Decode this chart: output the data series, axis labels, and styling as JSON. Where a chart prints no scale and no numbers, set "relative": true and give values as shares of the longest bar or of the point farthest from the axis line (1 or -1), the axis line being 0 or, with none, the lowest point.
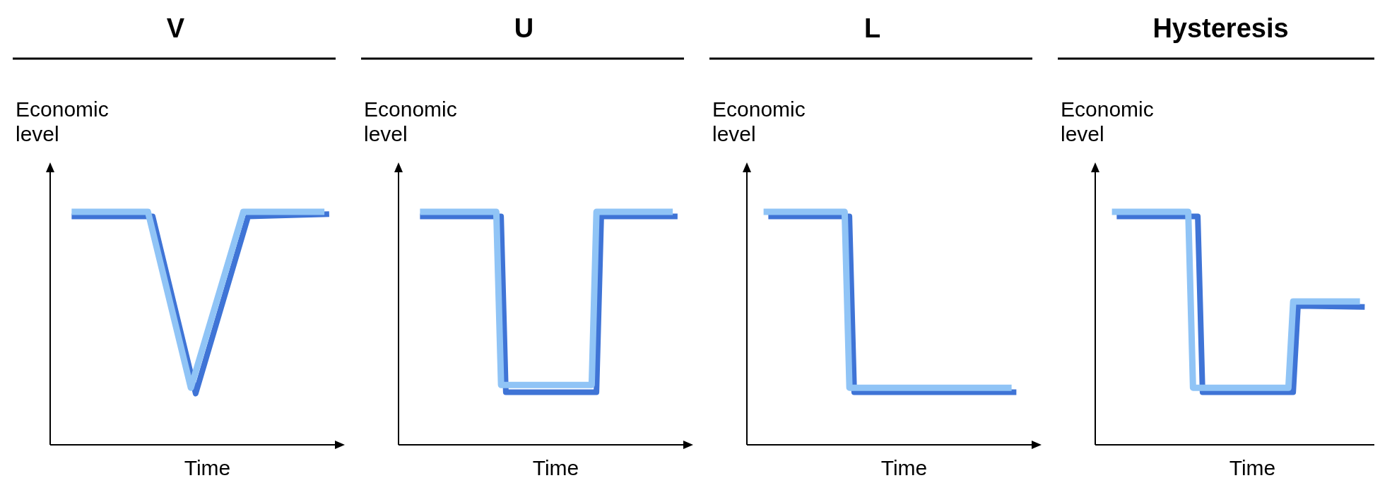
{
  "chart_data": [
    {
      "type": "line",
      "title": "V",
      "ylabel": "Economic level",
      "xlabel": "Time",
      "relative": true,
      "categories": [
        null,
        null,
        null,
        null,
        null,
        null,
        null,
        null,
        null,
        null,
        null,
        null,
        null,
        null,
        null,
        null,
        null,
        null,
        null,
        null,
        null,
        null,
        null,
        null,
        null,
        null,
        null,
        null,
        null,
        null,
        null,
        null,
        null,
        null,
        null,
        null,
        null,
        null,
        null,
        null,
        null,
        null,
        null,
        null,
        null,
        null,
        null,
        null,
        null,
        null,
        null,
        null,
        null,
        null,
        null,
        null,
        null,
        null,
        null,
        null
      ],
      "series": [
        {
          "color": "#3f74d6",
          "values": [
            null,
            null,
            null,
            null,
            0.98,
            null,
            null,
            null,
            null,
            null,
            null,
            null,
            null,
            null,
            null,
            null,
            null,
            null,
            null,
            null,
            null,
            0.98,
            null,
            null,
            null,
            null,
            null,
            null,
            null,
            null,
            0.22,
            null,
            null,
            null,
            null,
            null,
            null,
            null,
            null,
            null,
            null,
            0.98,
            null,
            null,
            null,
            null,
            null,
            null,
            null,
            null,
            null,
            null,
            null,
            null,
            null,
            null,
            null,
            null,
            0.99,
            null
          ]
        },
        {
          "color": "#90c4f6",
          "values": [
            null,
            null,
            null,
            null,
            1,
            null,
            null,
            null,
            null,
            null,
            null,
            null,
            null,
            null,
            null,
            null,
            null,
            null,
            null,
            null,
            1,
            null,
            null,
            null,
            null,
            null,
            null,
            null,
            null,
            0.245,
            null,
            null,
            null,
            null,
            null,
            null,
            null,
            null,
            null,
            null,
            1,
            null,
            null,
            null,
            null,
            null,
            null,
            null,
            null,
            null,
            null,
            null,
            null,
            null,
            null,
            null,
            null,
            1,
            null,
            null
          ]
        }
      ]
    },
    {
      "type": "line",
      "title": "U",
      "ylabel": "Economic level",
      "xlabel": "Time",
      "relative": true,
      "categories": [
        null,
        null,
        null,
        null,
        null,
        null,
        null,
        null,
        null,
        null,
        null,
        null,
        null,
        null,
        null,
        null,
        null,
        null,
        null,
        null,
        null,
        null,
        null,
        null,
        null,
        null,
        null,
        null,
        null,
        null,
        null,
        null,
        null,
        null,
        null,
        null,
        null,
        null,
        null,
        null,
        null,
        null,
        null,
        null,
        null,
        null,
        null,
        null,
        null,
        null,
        null,
        null,
        null,
        null,
        null,
        null,
        null,
        null,
        null,
        null
      ],
      "series": [
        {
          "color": "#3f74d6",
          "values": [
            null,
            null,
            null,
            null,
            0.98,
            null,
            null,
            null,
            null,
            null,
            null,
            null,
            null,
            null,
            null,
            null,
            null,
            null,
            null,
            null,
            null,
            0.98,
            0.226,
            null,
            null,
            null,
            null,
            null,
            null,
            null,
            null,
            null,
            null,
            null,
            null,
            null,
            null,
            null,
            null,
            null,
            null,
            0.226,
            0.98,
            null,
            null,
            null,
            null,
            null,
            null,
            null,
            null,
            null,
            null,
            null,
            null,
            null,
            null,
            null,
            0.98,
            null
          ]
        },
        {
          "color": "#90c4f6",
          "values": [
            null,
            null,
            null,
            null,
            1,
            null,
            null,
            null,
            null,
            null,
            null,
            null,
            null,
            null,
            null,
            null,
            null,
            null,
            null,
            null,
            1,
            0.257,
            null,
            null,
            null,
            null,
            null,
            null,
            null,
            null,
            null,
            null,
            null,
            null,
            null,
            null,
            null,
            null,
            null,
            null,
            0.257,
            1,
            null,
            null,
            null,
            null,
            null,
            null,
            null,
            null,
            null,
            null,
            null,
            null,
            null,
            null,
            null,
            1,
            null,
            null
          ]
        }
      ]
    },
    {
      "type": "line",
      "title": "L",
      "ylabel": "Economic level",
      "xlabel": "Time",
      "relative": true,
      "categories": [
        null,
        null,
        null,
        null,
        null,
        null,
        null,
        null,
        null,
        null,
        null,
        null,
        null,
        null,
        null,
        null,
        null,
        null,
        null,
        null,
        null,
        null,
        null,
        null,
        null,
        null,
        null,
        null,
        null,
        null,
        null,
        null,
        null,
        null,
        null,
        null,
        null,
        null,
        null,
        null,
        null,
        null,
        null,
        null,
        null,
        null,
        null,
        null,
        null,
        null,
        null,
        null,
        null,
        null,
        null,
        null,
        null,
        null,
        null,
        null
      ],
      "series": [
        {
          "color": "#3f74d6",
          "values": [
            null,
            null,
            null,
            null,
            0.98,
            null,
            null,
            null,
            null,
            null,
            null,
            null,
            null,
            null,
            null,
            null,
            null,
            null,
            null,
            null,
            null,
            0.98,
            0.226,
            null,
            null,
            null,
            null,
            null,
            null,
            null,
            null,
            null,
            null,
            null,
            null,
            null,
            null,
            null,
            null,
            null,
            null,
            null,
            null,
            null,
            null,
            null,
            null,
            null,
            null,
            null,
            null,
            null,
            null,
            null,
            null,
            null,
            0.226,
            null,
            null,
            null
          ]
        },
        {
          "color": "#90c4f6",
          "values": [
            null,
            null,
            null,
            1,
            null,
            null,
            null,
            null,
            null,
            null,
            null,
            null,
            null,
            null,
            null,
            null,
            null,
            null,
            null,
            null,
            1,
            0.245,
            null,
            null,
            null,
            null,
            null,
            null,
            null,
            null,
            null,
            null,
            null,
            null,
            null,
            null,
            null,
            null,
            null,
            null,
            null,
            null,
            null,
            null,
            null,
            null,
            null,
            null,
            null,
            null,
            null,
            null,
            null,
            null,
            null,
            0.245,
            null,
            null,
            null,
            null
          ]
        }
      ]
    },
    {
      "type": "line",
      "title": "Hysteresis",
      "ylabel": "Economic level",
      "xlabel": "Time",
      "relative": true,
      "categories": [
        null,
        null,
        null,
        null,
        null,
        null,
        null,
        null,
        null,
        null,
        null,
        null,
        null,
        null,
        null,
        null,
        null,
        null,
        null,
        null,
        null,
        null,
        null,
        null,
        null,
        null,
        null,
        null,
        null,
        null,
        null,
        null,
        null,
        null,
        null,
        null,
        null,
        null,
        null,
        null,
        null,
        null,
        null,
        null,
        null,
        null,
        null,
        null,
        null,
        null,
        null,
        null,
        null,
        null,
        null,
        null,
        null,
        null,
        null,
        null
      ],
      "series": [
        {
          "color": "#3f74d6",
          "values": [
            null,
            null,
            null,
            null,
            0.98,
            null,
            null,
            null,
            null,
            null,
            null,
            null,
            null,
            null,
            null,
            null,
            null,
            null,
            null,
            null,
            null,
            0.98,
            0.226,
            null,
            null,
            null,
            null,
            null,
            null,
            null,
            null,
            null,
            null,
            null,
            null,
            null,
            null,
            null,
            null,
            null,
            null,
            0.226,
            0.596,
            null,
            null,
            null,
            null,
            null,
            null,
            null,
            null,
            null,
            null,
            null,
            null,
            null,
            0.592,
            null,
            null,
            null
          ]
        },
        {
          "color": "#90c4f6",
          "values": [
            null,
            null,
            null,
            1,
            null,
            null,
            null,
            null,
            null,
            null,
            null,
            null,
            null,
            null,
            null,
            null,
            null,
            null,
            null,
            1,
            0.245,
            null,
            null,
            null,
            null,
            null,
            null,
            null,
            null,
            null,
            null,
            null,
            null,
            null,
            null,
            null,
            null,
            null,
            null,
            null,
            0.245,
            0.615,
            null,
            null,
            null,
            null,
            null,
            null,
            null,
            null,
            null,
            null,
            null,
            null,
            null,
            0.615,
            null,
            null,
            null,
            null
          ]
        }
      ]
    }
  ]
}
